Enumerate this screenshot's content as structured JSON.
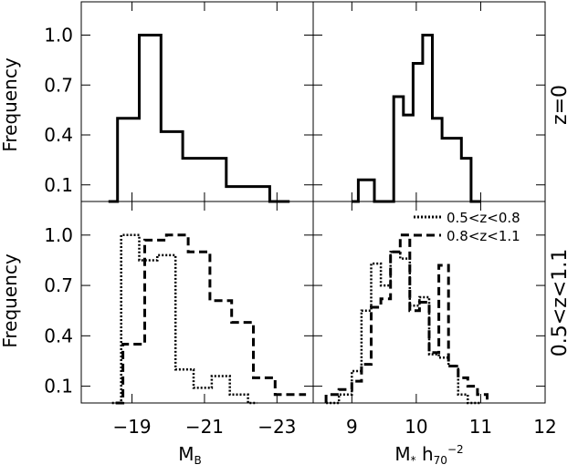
{
  "chart_data": {
    "type": "histogram-grid",
    "y_label": "Frequency",
    "y_ticks": [
      "0.1",
      "0.4",
      "0.7",
      "1.0"
    ],
    "y_tick_values": [
      0.1,
      0.4,
      0.7,
      1.0
    ],
    "rows": [
      {
        "id": "top",
        "label": "z=0",
        "ylim": [
          0.0,
          1.2
        ]
      },
      {
        "id": "bottom",
        "label": "0.5<z<1.1",
        "ylim": [
          0.0,
          1.2
        ]
      }
    ],
    "columns": [
      {
        "id": "left",
        "xlabel_main": "M",
        "xlabel_sub": "B",
        "xlim": [
          -17.6,
          -24.0
        ],
        "x_ticks": [
          "−19",
          "−21",
          "−23"
        ],
        "x_tick_values": [
          -19,
          -21,
          -23
        ]
      },
      {
        "id": "right",
        "xlabel_main": "M",
        "xlabel_sub": "*",
        "xlabel_rest": " h",
        "xlabel_rest_sub": "70",
        "xlabel_rest_sup": "−2",
        "xlim": [
          8.4,
          12.0
        ],
        "x_ticks": [
          "9",
          "10",
          "11",
          "12"
        ],
        "x_tick_values": [
          9,
          10,
          11,
          12
        ]
      }
    ],
    "legend": {
      "placement": "top-right of lower-right panel",
      "entries": [
        {
          "style": "dotted",
          "label": "0.5<z<0.8"
        },
        {
          "style": "dashed",
          "label": "0.8<z<1.1"
        }
      ]
    },
    "series": [
      {
        "row": "top",
        "col": "left",
        "style": "solid",
        "x": [
          -18.35,
          -18.6,
          -18.9,
          -19.2,
          -19.5,
          -19.8,
          -20.1,
          -20.4,
          -20.7,
          -21.0,
          -21.3,
          -21.6,
          -21.9,
          -22.2,
          -22.5,
          -22.8,
          -23.1,
          -23.35
        ],
        "y": [
          0.0,
          0.5,
          0.5,
          1.0,
          1.0,
          0.42,
          0.42,
          0.26,
          0.26,
          0.26,
          0.26,
          0.09,
          0.09,
          0.09,
          0.09,
          0.0,
          0.0,
          0.0
        ]
      },
      {
        "row": "top",
        "col": "right",
        "style": "solid",
        "x": [
          9.0,
          9.1,
          9.2,
          9.35,
          9.5,
          9.65,
          9.8,
          9.95,
          10.1,
          10.25,
          10.4,
          10.55,
          10.7,
          10.85,
          11.0
        ],
        "y": [
          0.0,
          0.13,
          0.13,
          0.0,
          0.0,
          0.63,
          0.52,
          0.83,
          1.0,
          0.5,
          0.38,
          0.38,
          0.26,
          0.0,
          0.0
        ]
      },
      {
        "row": "bottom",
        "col": "left",
        "style": "dotted",
        "x": [
          -18.45,
          -18.7,
          -18.95,
          -19.2,
          -19.45,
          -19.7,
          -19.95,
          -20.2,
          -20.45,
          -20.7,
          -20.95,
          -21.2,
          -21.45,
          -21.7,
          -21.95,
          -22.2,
          -22.45
        ],
        "y": [
          0.0,
          1.0,
          1.0,
          0.85,
          0.85,
          0.88,
          0.88,
          0.2,
          0.2,
          0.09,
          0.09,
          0.16,
          0.16,
          0.05,
          0.05,
          0.0,
          0.0
        ]
      },
      {
        "row": "bottom",
        "col": "left",
        "style": "dashed",
        "x": [
          -18.55,
          -18.75,
          -19.05,
          -19.35,
          -19.65,
          -19.95,
          -20.25,
          -20.55,
          -20.85,
          -21.15,
          -21.45,
          -21.75,
          -22.05,
          -22.35,
          -22.65,
          -22.95,
          -23.25,
          -23.55,
          -23.8
        ],
        "y": [
          0.0,
          0.35,
          0.35,
          0.97,
          0.97,
          1.0,
          1.0,
          0.9,
          0.9,
          0.61,
          0.61,
          0.48,
          0.48,
          0.15,
          0.15,
          0.05,
          0.05,
          0.05,
          0.05
        ]
      },
      {
        "row": "bottom",
        "col": "right",
        "style": "dotted",
        "x": [
          8.6,
          8.8,
          9.0,
          9.15,
          9.3,
          9.45,
          9.6,
          9.75,
          9.9,
          10.05,
          10.2,
          10.35,
          10.5,
          10.65,
          10.8,
          11.0
        ],
        "y": [
          0.0,
          0.05,
          0.19,
          0.55,
          0.83,
          0.7,
          0.9,
          0.86,
          0.58,
          0.63,
          0.29,
          0.27,
          0.22,
          0.05,
          0.0,
          0.0
        ]
      },
      {
        "row": "bottom",
        "col": "right",
        "style": "dashed",
        "x": [
          8.6,
          8.8,
          9.0,
          9.15,
          9.3,
          9.45,
          9.6,
          9.75,
          9.9,
          10.05,
          10.2,
          10.35,
          10.5,
          10.65,
          10.8,
          10.95,
          11.1
        ],
        "y": [
          0.05,
          0.08,
          0.13,
          0.23,
          0.57,
          0.62,
          0.9,
          1.0,
          0.55,
          0.6,
          0.3,
          0.82,
          0.22,
          0.15,
          0.1,
          0.05,
          0.0
        ]
      }
    ]
  }
}
